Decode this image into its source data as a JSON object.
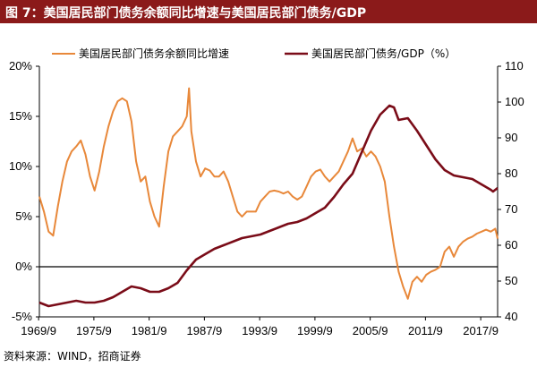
{
  "title": "图 7：美国居民部门债务余额同比增速与美国居民部门债务/GDP",
  "source": "资料来源：WIND，招商证券",
  "chart_data": {
    "type": "line",
    "x_ticks": [
      "1969/9",
      "1975/9",
      "1981/9",
      "1987/9",
      "1993/9",
      "1999/9",
      "2005/9",
      "2011/9",
      "2017/9"
    ],
    "y_left": {
      "ticks": [
        "-5%",
        "0%",
        "5%",
        "10%",
        "15%",
        "20%"
      ],
      "range": [
        -5,
        20
      ]
    },
    "y_right": {
      "ticks": [
        "40",
        "50",
        "60",
        "70",
        "80",
        "90",
        "100",
        "110"
      ],
      "range": [
        40,
        110
      ]
    },
    "x_range": [
      1969.75,
      2019.5
    ],
    "series": [
      {
        "name": "美国居民部门债务余额同比增速",
        "axis": "left",
        "color": "#e8883a",
        "points": [
          [
            1969.75,
            7.0
          ],
          [
            1970.25,
            5.5
          ],
          [
            1970.75,
            3.5
          ],
          [
            1971.25,
            3.1
          ],
          [
            1971.75,
            6.0
          ],
          [
            1972.25,
            8.5
          ],
          [
            1972.75,
            10.5
          ],
          [
            1973.25,
            11.5
          ],
          [
            1973.75,
            12.0
          ],
          [
            1974.25,
            12.6
          ],
          [
            1974.75,
            11.2
          ],
          [
            1975.25,
            9.0
          ],
          [
            1975.75,
            7.6
          ],
          [
            1976.25,
            9.5
          ],
          [
            1976.75,
            12.0
          ],
          [
            1977.25,
            14.0
          ],
          [
            1977.75,
            15.5
          ],
          [
            1978.25,
            16.5
          ],
          [
            1978.75,
            16.8
          ],
          [
            1979.25,
            16.5
          ],
          [
            1979.75,
            14.5
          ],
          [
            1980.25,
            10.5
          ],
          [
            1980.75,
            8.5
          ],
          [
            1981.25,
            9.0
          ],
          [
            1981.75,
            6.5
          ],
          [
            1982.25,
            5.0
          ],
          [
            1982.75,
            4.0
          ],
          [
            1983.25,
            8.0
          ],
          [
            1983.75,
            11.5
          ],
          [
            1984.25,
            13.0
          ],
          [
            1984.75,
            13.5
          ],
          [
            1985.25,
            14.0
          ],
          [
            1985.75,
            15.0
          ],
          [
            1986.0,
            17.8
          ],
          [
            1986.25,
            13.5
          ],
          [
            1986.75,
            10.5
          ],
          [
            1987.25,
            9.0
          ],
          [
            1987.75,
            9.8
          ],
          [
            1988.25,
            9.6
          ],
          [
            1988.75,
            9.0
          ],
          [
            1989.25,
            9.0
          ],
          [
            1989.75,
            9.5
          ],
          [
            1990.25,
            8.5
          ],
          [
            1990.75,
            7.0
          ],
          [
            1991.25,
            5.5
          ],
          [
            1991.75,
            5.0
          ],
          [
            1992.25,
            5.5
          ],
          [
            1992.75,
            5.5
          ],
          [
            1993.25,
            5.5
          ],
          [
            1993.75,
            6.5
          ],
          [
            1994.25,
            7.0
          ],
          [
            1994.75,
            7.5
          ],
          [
            1995.25,
            7.6
          ],
          [
            1995.75,
            7.5
          ],
          [
            1996.25,
            7.3
          ],
          [
            1996.75,
            7.5
          ],
          [
            1997.25,
            7.0
          ],
          [
            1997.75,
            6.7
          ],
          [
            1998.25,
            7.0
          ],
          [
            1998.75,
            8.0
          ],
          [
            1999.25,
            9.0
          ],
          [
            1999.75,
            9.5
          ],
          [
            2000.25,
            9.7
          ],
          [
            2000.75,
            9.0
          ],
          [
            2001.25,
            8.5
          ],
          [
            2001.75,
            9.0
          ],
          [
            2002.25,
            9.5
          ],
          [
            2002.75,
            10.5
          ],
          [
            2003.25,
            11.5
          ],
          [
            2003.75,
            12.8
          ],
          [
            2004.25,
            11.5
          ],
          [
            2004.75,
            11.8
          ],
          [
            2005.25,
            11.0
          ],
          [
            2005.75,
            11.5
          ],
          [
            2006.25,
            11.0
          ],
          [
            2006.75,
            10.0
          ],
          [
            2007.25,
            8.5
          ],
          [
            2007.75,
            5.0
          ],
          [
            2008.25,
            2.0
          ],
          [
            2008.75,
            -0.5
          ],
          [
            2009.25,
            -2.0
          ],
          [
            2009.75,
            -3.2
          ],
          [
            2010.25,
            -1.5
          ],
          [
            2010.75,
            -1.0
          ],
          [
            2011.25,
            -1.5
          ],
          [
            2011.75,
            -0.8
          ],
          [
            2012.25,
            -0.5
          ],
          [
            2012.75,
            -0.3
          ],
          [
            2013.25,
            0.0
          ],
          [
            2013.75,
            1.5
          ],
          [
            2014.25,
            2.0
          ],
          [
            2014.75,
            1.0
          ],
          [
            2015.25,
            2.0
          ],
          [
            2015.75,
            2.5
          ],
          [
            2016.25,
            2.8
          ],
          [
            2016.75,
            3.0
          ],
          [
            2017.25,
            3.3
          ],
          [
            2017.75,
            3.5
          ],
          [
            2018.25,
            3.7
          ],
          [
            2018.75,
            3.5
          ],
          [
            2019.25,
            3.8
          ],
          [
            2019.5,
            2.8
          ]
        ]
      },
      {
        "name": "美国居民部门债务/GDP",
        "unit": "（%）",
        "axis": "right",
        "color": "#7a0c18",
        "points": [
          [
            1969.75,
            44.0
          ],
          [
            1970.75,
            43.0
          ],
          [
            1971.75,
            43.5
          ],
          [
            1972.75,
            44.0
          ],
          [
            1973.75,
            44.5
          ],
          [
            1974.75,
            44.0
          ],
          [
            1975.75,
            44.0
          ],
          [
            1976.75,
            44.5
          ],
          [
            1977.75,
            45.5
          ],
          [
            1978.75,
            47.0
          ],
          [
            1979.75,
            48.5
          ],
          [
            1980.75,
            48.0
          ],
          [
            1981.75,
            47.0
          ],
          [
            1982.75,
            47.0
          ],
          [
            1983.75,
            48.0
          ],
          [
            1984.75,
            49.5
          ],
          [
            1985.75,
            53.0
          ],
          [
            1986.75,
            56.0
          ],
          [
            1987.75,
            57.5
          ],
          [
            1988.75,
            59.0
          ],
          [
            1989.75,
            60.0
          ],
          [
            1990.75,
            61.0
          ],
          [
            1991.75,
            62.0
          ],
          [
            1992.75,
            62.5
          ],
          [
            1993.75,
            63.0
          ],
          [
            1994.75,
            64.0
          ],
          [
            1995.75,
            65.0
          ],
          [
            1996.75,
            66.0
          ],
          [
            1997.75,
            66.5
          ],
          [
            1998.75,
            67.5
          ],
          [
            1999.75,
            69.0
          ],
          [
            2000.75,
            70.5
          ],
          [
            2001.75,
            73.5
          ],
          [
            2002.75,
            77.0
          ],
          [
            2003.75,
            80.0
          ],
          [
            2004.75,
            86.0
          ],
          [
            2005.75,
            92.0
          ],
          [
            2006.75,
            96.5
          ],
          [
            2007.75,
            99.0
          ],
          [
            2008.25,
            98.5
          ],
          [
            2008.75,
            95.0
          ],
          [
            2009.75,
            95.5
          ],
          [
            2010.75,
            92.0
          ],
          [
            2011.75,
            88.0
          ],
          [
            2012.75,
            84.0
          ],
          [
            2013.75,
            81.0
          ],
          [
            2014.75,
            79.5
          ],
          [
            2015.75,
            79.0
          ],
          [
            2016.75,
            78.5
          ],
          [
            2017.75,
            77.0
          ],
          [
            2018.75,
            75.5
          ],
          [
            2019.0,
            75.0
          ],
          [
            2019.5,
            76.0
          ]
        ]
      }
    ]
  }
}
